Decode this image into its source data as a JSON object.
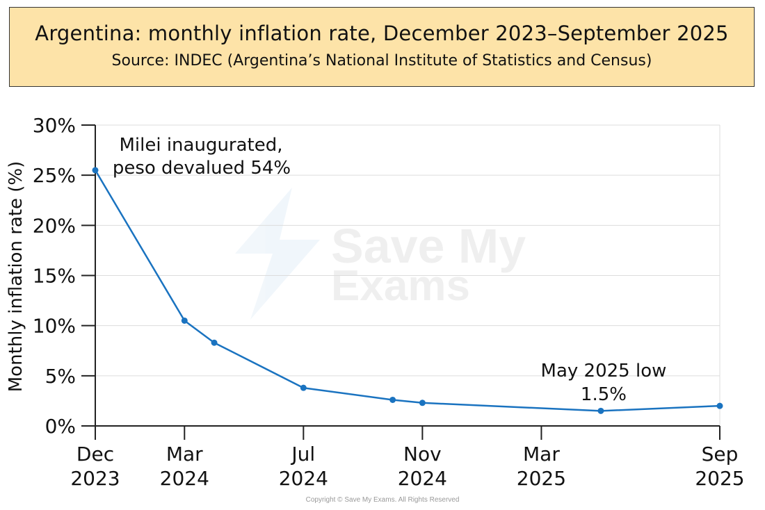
{
  "header": {
    "title": "Argentina: monthly inflation rate, December 2023–September 2025",
    "subtitle": "Source: INDEC (Argentina’s National Institute of Statistics and Census)"
  },
  "footer": {
    "copyright": "Copyright © Save My Exams. All Rights Reserved"
  },
  "watermark": {
    "line1": "Save My",
    "line2": "Exams"
  },
  "chart_data": {
    "type": "line",
    "title": "Argentina: monthly inflation rate, December 2023–September 2025",
    "subtitle": "Source: INDEC (Argentina’s National Institute of Statistics and Census)",
    "ylabel": "Monthly inflation rate (%)",
    "xlabel": "",
    "x_range": [
      "2023-12",
      "2025-09"
    ],
    "ylim": [
      0,
      30
    ],
    "yticks": [
      0,
      5,
      10,
      15,
      20,
      25,
      30
    ],
    "ytick_labels": [
      "0%",
      "5%",
      "10%",
      "15%",
      "20%",
      "25%",
      "30%"
    ],
    "xticks": [
      {
        "date": "2023-12",
        "label": [
          "Dec",
          "2023"
        ]
      },
      {
        "date": "2024-03",
        "label": [
          "Mar",
          "2024"
        ]
      },
      {
        "date": "2024-07",
        "label": [
          "Jul",
          "2024"
        ]
      },
      {
        "date": "2024-11",
        "label": [
          "Nov",
          "2024"
        ]
      },
      {
        "date": "2025-03",
        "label": [
          "Mar",
          "2025"
        ]
      },
      {
        "date": "2025-09",
        "label": [
          "Sep",
          "2025"
        ]
      }
    ],
    "grid": true,
    "line_color": "#1a73c0",
    "series": [
      {
        "points": [
          {
            "x": "2023-12",
            "y": 25.5
          },
          {
            "x": "2024-03",
            "y": 10.5
          },
          {
            "x": "2024-04",
            "y": 8.3
          },
          {
            "x": "2024-07",
            "y": 3.8
          },
          {
            "x": "2024-10",
            "y": 2.6
          },
          {
            "x": "2024-11",
            "y": 2.3
          },
          {
            "x": "2025-05",
            "y": 1.5
          },
          {
            "x": "2025-09",
            "y": 2.0
          }
        ]
      }
    ],
    "annotations": [
      {
        "x": "2023-12",
        "lines": [
          "Milei inaugurated,",
          "peso devalued 54%"
        ]
      },
      {
        "x": "2025-05",
        "lines": [
          "May 2025 low",
          "1.5%"
        ]
      }
    ]
  }
}
